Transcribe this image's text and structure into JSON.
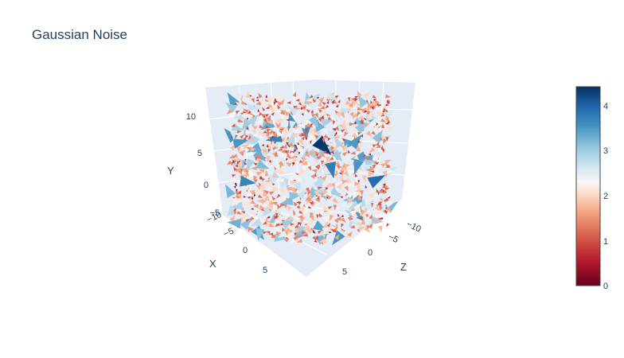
{
  "chart_data": {
    "type": "cone",
    "title": "Gaussian Noise",
    "axes": {
      "x": {
        "label": "X",
        "ticks": [
          "−10",
          "−5",
          "0",
          "5"
        ]
      },
      "y": {
        "label": "Y",
        "ticks": [
          "−5",
          "0",
          "5",
          "10"
        ]
      },
      "z": {
        "label": "Z",
        "ticks": [
          "−10",
          "−5",
          "0",
          "5"
        ]
      }
    },
    "colorbar": {
      "min": 0,
      "max": 4.3,
      "ticks": [
        "0",
        "1",
        "2",
        "3",
        "4"
      ],
      "colorscale": "RdBu"
    },
    "description_grid": "random 3D vector field, cones colored by magnitude"
  }
}
